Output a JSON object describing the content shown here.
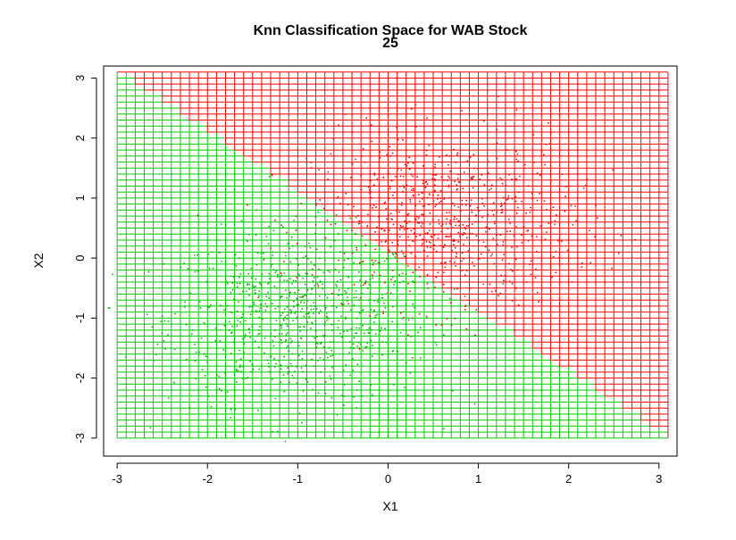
{
  "chart_data": {
    "type": "scatter",
    "title": "Knn Classification Space for WAB Stock",
    "subtitle": "25",
    "xlabel": "X1",
    "ylabel": "X2",
    "xlim": [
      -3.15,
      3.2
    ],
    "ylim": [
      -3.3,
      3.2
    ],
    "xticks": [
      "-3",
      "-2",
      "-1",
      "0",
      "1",
      "2",
      "3"
    ],
    "yticks": [
      "-3",
      "-2",
      "-1",
      "0",
      "1",
      "2",
      "3"
    ],
    "grid_range": [
      -3,
      3.1
    ],
    "grid_step": 0.1,
    "decision_boundary": {
      "description": "linear boundary x1 + x2 = 0.1; region above is class 1 (red), below is class 0 (green)",
      "slope": -1,
      "intercept": 0.1
    },
    "classes": [
      {
        "label": "0",
        "color": "#00cc00",
        "center": [
          -1.0,
          -1.0
        ]
      },
      {
        "label": "1",
        "color": "#ff0000",
        "center": [
          0.6,
          0.6
        ]
      }
    ],
    "colors": {
      "grid_red": "#ff0000",
      "grid_green": "#00cc00",
      "point_red": "#ff0000",
      "point_green": "#00b400"
    }
  }
}
